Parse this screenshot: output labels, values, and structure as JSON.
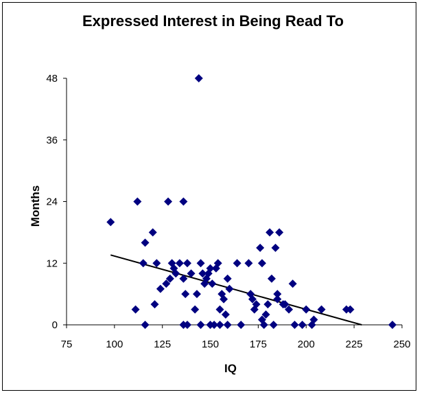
{
  "chart_data": {
    "type": "scatter",
    "title": "Expressed Interest in Being Read To",
    "xlabel": "IQ",
    "ylabel": "Months",
    "xlim": [
      75,
      250
    ],
    "ylim": [
      0,
      48
    ],
    "xticks": [
      "75",
      "100",
      "125",
      "150",
      "175",
      "200",
      "225",
      "250"
    ],
    "yticks": [
      "0",
      "12",
      "24",
      "36",
      "48"
    ],
    "grid": false,
    "legend": "none",
    "marker_color": "#000080",
    "trendline": {
      "x": [
        98,
        229
      ],
      "y": [
        13.6,
        0
      ]
    },
    "points": [
      [
        98,
        20
      ],
      [
        112,
        24
      ],
      [
        111,
        3
      ],
      [
        115,
        12
      ],
      [
        116,
        16
      ],
      [
        116,
        0
      ],
      [
        120,
        18
      ],
      [
        121,
        4
      ],
      [
        122,
        12
      ],
      [
        124,
        7
      ],
      [
        127,
        8
      ],
      [
        128,
        24
      ],
      [
        129,
        9
      ],
      [
        130,
        12
      ],
      [
        131,
        11
      ],
      [
        132,
        10
      ],
      [
        134,
        12
      ],
      [
        136,
        24
      ],
      [
        136,
        9
      ],
      [
        136,
        0
      ],
      [
        137,
        6
      ],
      [
        138,
        0
      ],
      [
        138,
        12
      ],
      [
        140,
        10
      ],
      [
        142,
        3
      ],
      [
        143,
        6
      ],
      [
        144,
        48
      ],
      [
        145,
        12
      ],
      [
        145,
        0
      ],
      [
        146,
        10
      ],
      [
        147,
        8
      ],
      [
        148,
        9
      ],
      [
        149,
        10
      ],
      [
        150,
        0
      ],
      [
        150,
        11
      ],
      [
        151,
        8
      ],
      [
        152,
        0
      ],
      [
        153,
        11
      ],
      [
        154,
        12
      ],
      [
        155,
        0
      ],
      [
        155,
        3
      ],
      [
        156,
        6
      ],
      [
        157,
        5
      ],
      [
        158,
        2
      ],
      [
        159,
        9
      ],
      [
        159,
        0
      ],
      [
        160,
        7
      ],
      [
        164,
        12
      ],
      [
        166,
        0
      ],
      [
        170,
        12
      ],
      [
        171,
        6
      ],
      [
        172,
        5
      ],
      [
        173,
        3
      ],
      [
        174,
        4
      ],
      [
        176,
        15
      ],
      [
        177,
        12
      ],
      [
        177,
        1
      ],
      [
        178,
        0
      ],
      [
        179,
        2
      ],
      [
        180,
        4
      ],
      [
        181,
        18
      ],
      [
        182,
        9
      ],
      [
        183,
        0
      ],
      [
        184,
        15
      ],
      [
        185,
        6
      ],
      [
        185,
        5
      ],
      [
        186,
        18
      ],
      [
        188,
        4
      ],
      [
        189,
        4
      ],
      [
        191,
        3
      ],
      [
        193,
        8
      ],
      [
        194,
        0
      ],
      [
        198,
        0
      ],
      [
        200,
        3
      ],
      [
        203,
        0
      ],
      [
        204,
        1
      ],
      [
        208,
        3
      ],
      [
        221,
        3
      ],
      [
        223,
        3
      ],
      [
        245,
        0
      ]
    ]
  }
}
